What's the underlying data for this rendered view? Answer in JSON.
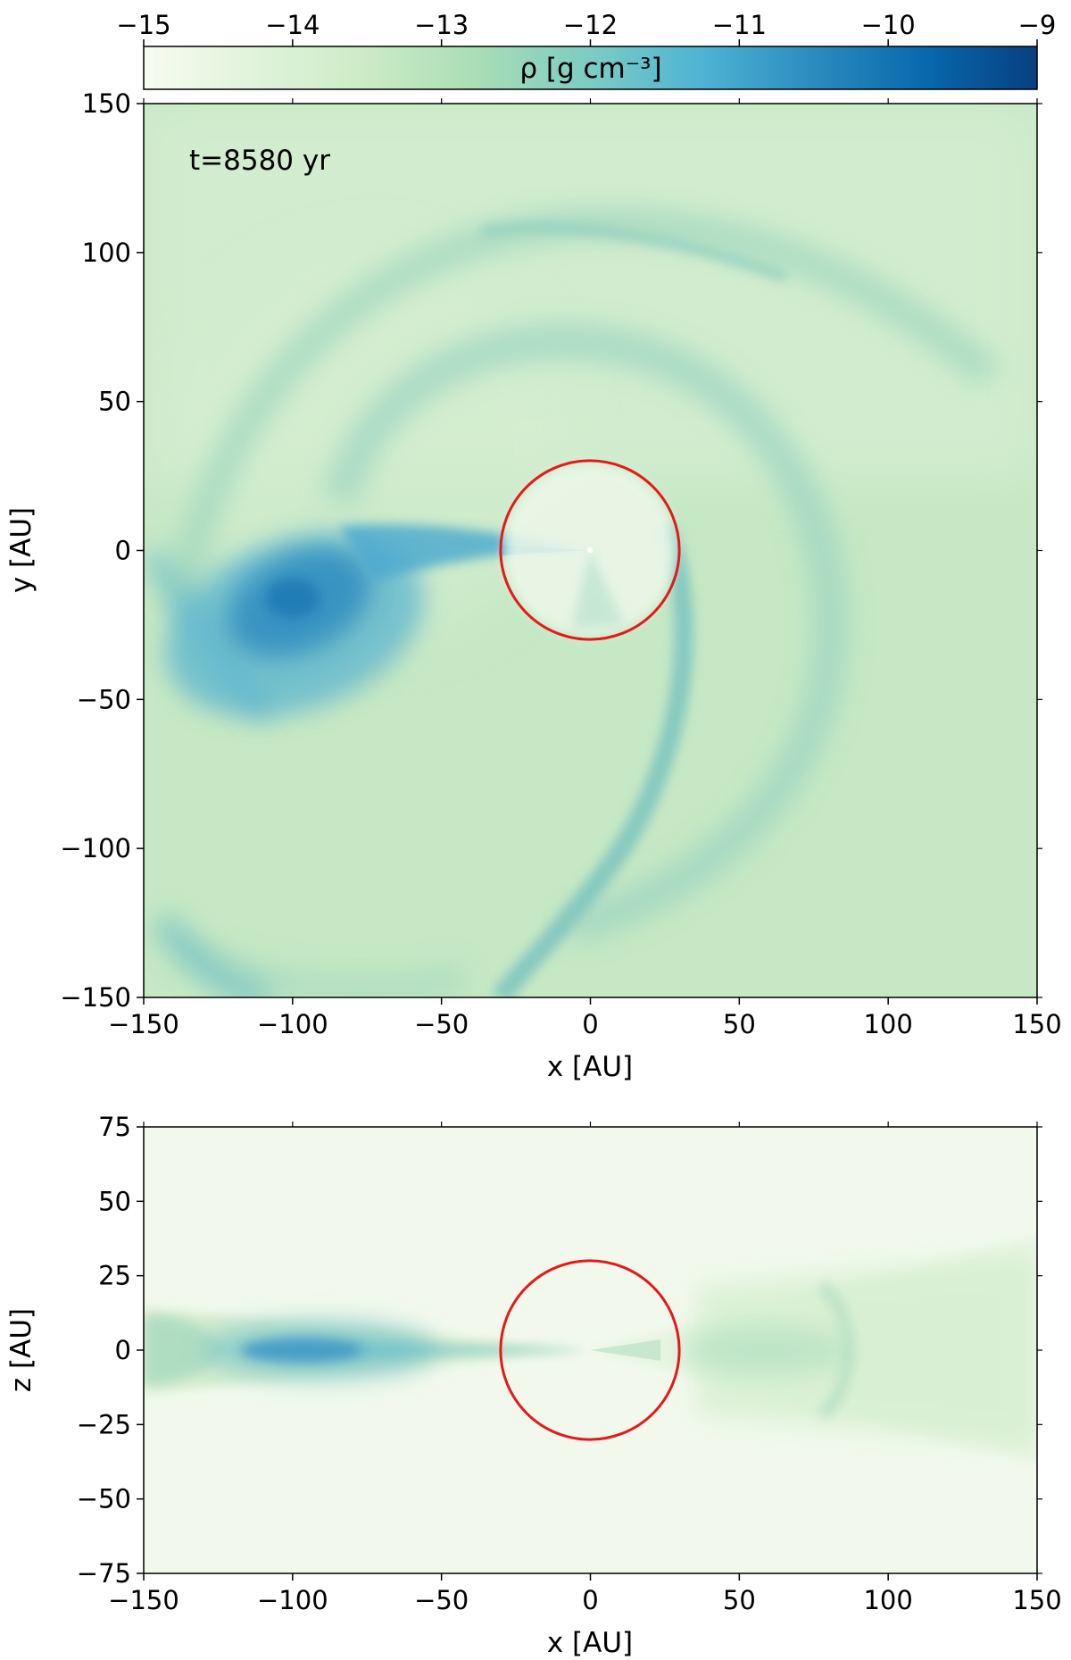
{
  "chart_data": [
    {
      "type": "heatmap",
      "panel": "top",
      "title": "",
      "xlabel": "x [AU]",
      "ylabel": "y [AU]",
      "xlim": [
        -150,
        150
      ],
      "ylim": [
        -150,
        150
      ],
      "xticks": [
        -150,
        -100,
        -50,
        0,
        50,
        100,
        150
      ],
      "yticks": [
        -150,
        -100,
        -50,
        0,
        50,
        100,
        150
      ],
      "xtick_labels": [
        "−150",
        "−100",
        "−50",
        "0",
        "50",
        "100",
        "150"
      ],
      "ytick_labels": [
        "−150",
        "−100",
        "−50",
        "0",
        "50",
        "100",
        "150"
      ],
      "annotation": "t=8580 yr",
      "grid": false,
      "circle": {
        "center": [
          0,
          0
        ],
        "radius": 30,
        "color": "#e31a1c"
      },
      "colorbar": {
        "label": "ρ [g cm⁻³]",
        "scale": "log10",
        "range": [
          -15,
          -9
        ],
        "ticks": [
          -15,
          -14,
          -13,
          -12,
          -11,
          -10,
          -9
        ],
        "tick_labels": [
          "−15",
          "−14",
          "−13",
          "−12",
          "−11",
          "−10",
          "−9"
        ],
        "position": "top"
      },
      "features": [
        {
          "name": "dense clump",
          "center": [
            -97,
            -18
          ],
          "log_rho_peak": -10.6
        },
        {
          "name": "outer spiral arm",
          "radius_au": 110,
          "log_rho": -12.9
        },
        {
          "name": "inner spiral arm",
          "radius_au": 68,
          "log_rho": -12.6
        },
        {
          "name": "filament to center",
          "from": [
            -95,
            0
          ],
          "to": [
            0,
            0
          ],
          "log_rho": -12.0
        },
        {
          "name": "southern arc",
          "from": [
            35,
            0
          ],
          "to": [
            -45,
            -150
          ],
          "log_rho": -12.7
        }
      ]
    },
    {
      "type": "heatmap",
      "panel": "bottom",
      "title": "",
      "xlabel": "x [AU]",
      "ylabel": "z [AU]",
      "xlim": [
        -150,
        150
      ],
      "ylim": [
        -75,
        75
      ],
      "xticks": [
        -150,
        -100,
        -50,
        0,
        50,
        100,
        150
      ],
      "yticks": [
        -75,
        -50,
        -25,
        0,
        25,
        50,
        75
      ],
      "xtick_labels": [
        "−150",
        "−100",
        "−50",
        "0",
        "50",
        "100",
        "150"
      ],
      "ytick_labels": [
        "−75",
        "−50",
        "−25",
        "0",
        "25",
        "50",
        "75"
      ],
      "grid": false,
      "circle": {
        "center": [
          0,
          0
        ],
        "radius": 30,
        "color": "#e31a1c"
      },
      "features": [
        {
          "name": "left disk midplane peak",
          "center": [
            -97,
            0
          ],
          "log_rho_peak": -11.6
        },
        {
          "name": "right disk",
          "x_range": [
            35,
            150
          ],
          "log_rho": -13.4
        }
      ]
    }
  ],
  "colors": {
    "colormap": [
      "#f7fcf0",
      "#e0f3db",
      "#ccebc5",
      "#a8ddb5",
      "#7bccc4",
      "#4eb3d3",
      "#2b8cbe",
      "#0868ac",
      "#084081"
    ],
    "circle": "#e31a1c",
    "background_low": "#f7fcf0"
  }
}
